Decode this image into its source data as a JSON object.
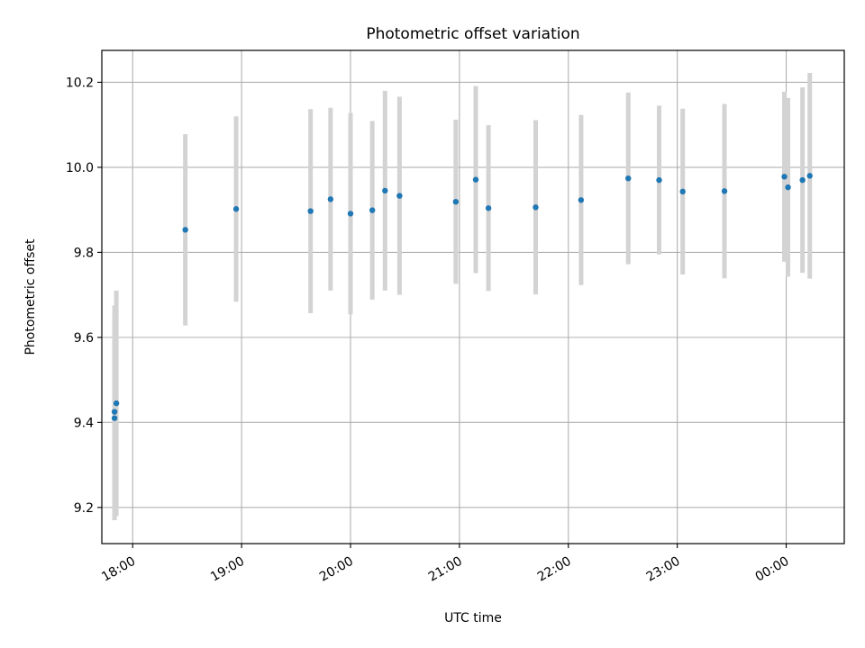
{
  "chart_data": {
    "type": "scatter",
    "title": "Photometric offset variation",
    "xlabel": "UTC time",
    "ylabel": "Photometric offset",
    "ylim": [
      9.115,
      10.275
    ],
    "xlim": [
      "17:43",
      "00:32"
    ],
    "grid": true,
    "colors": {
      "point": "#1f77b4",
      "errorbar": "#d3d3d3",
      "grid": "#b0b0b0"
    },
    "yticks": [
      "9.2",
      "9.4",
      "9.6",
      "9.8",
      "10.0",
      "10.2"
    ],
    "xticks": [
      "18:00",
      "19:00",
      "20:00",
      "21:00",
      "22:00",
      "23:00",
      "00:00"
    ],
    "series": [
      {
        "points": [
          {
            "t": "17:50",
            "y": 9.41,
            "err": 0.24
          },
          {
            "t": "17:50",
            "y": 9.425,
            "err": 0.25
          },
          {
            "t": "17:51",
            "y": 9.445,
            "err": 0.265
          },
          {
            "t": "18:29",
            "y": 9.853,
            "err": 0.225
          },
          {
            "t": "18:57",
            "y": 9.902,
            "err": 0.218
          },
          {
            "t": "19:38",
            "y": 9.897,
            "err": 0.24
          },
          {
            "t": "19:49",
            "y": 9.925,
            "err": 0.215
          },
          {
            "t": "20:00",
            "y": 9.891,
            "err": 0.237
          },
          {
            "t": "20:12",
            "y": 9.899,
            "err": 0.21
          },
          {
            "t": "20:19",
            "y": 9.945,
            "err": 0.235
          },
          {
            "t": "20:27",
            "y": 9.933,
            "err": 0.233
          },
          {
            "t": "20:58",
            "y": 9.919,
            "err": 0.193
          },
          {
            "t": "21:09",
            "y": 9.971,
            "err": 0.22
          },
          {
            "t": "21:16",
            "y": 9.904,
            "err": 0.195
          },
          {
            "t": "21:42",
            "y": 9.906,
            "err": 0.205
          },
          {
            "t": "22:07",
            "y": 9.923,
            "err": 0.2
          },
          {
            "t": "22:33",
            "y": 9.974,
            "err": 0.202
          },
          {
            "t": "22:50",
            "y": 9.97,
            "err": 0.175
          },
          {
            "t": "23:03",
            "y": 9.943,
            "err": 0.195
          },
          {
            "t": "23:26",
            "y": 9.944,
            "err": 0.205
          },
          {
            "t": "23:59",
            "y": 9.978,
            "err": 0.2
          },
          {
            "t": "00:01",
            "y": 9.953,
            "err": 0.21
          },
          {
            "t": "00:09",
            "y": 9.97,
            "err": 0.218
          },
          {
            "t": "00:13",
            "y": 9.98,
            "err": 0.242
          }
        ]
      }
    ]
  }
}
